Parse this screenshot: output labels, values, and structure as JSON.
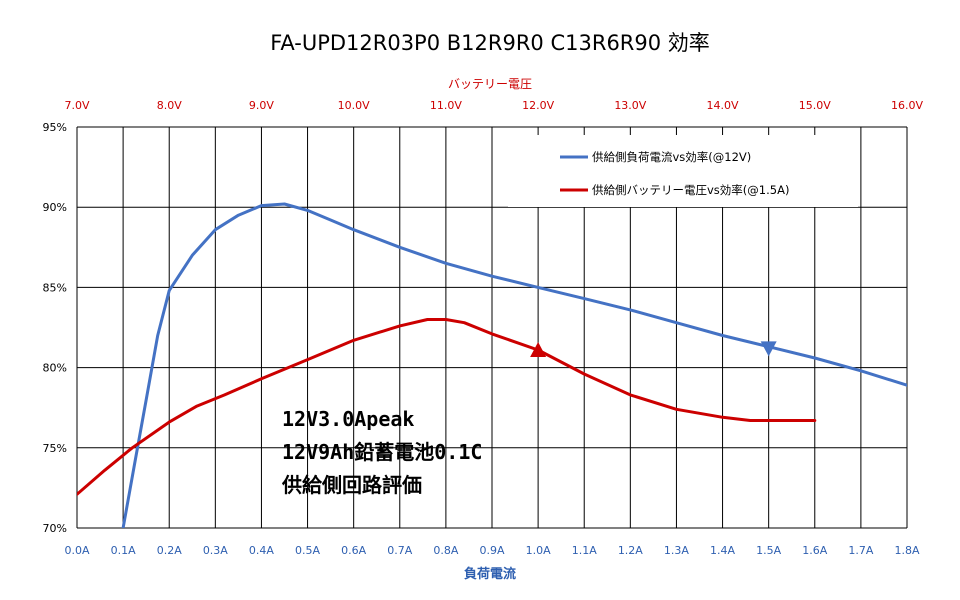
{
  "title": "FA-UPD12R03P0 B12R9R0 C13R6R90 効率",
  "colors": {
    "current_series": "#4472c4",
    "voltage_series": "#cc0000",
    "top_axis": "#cc0000",
    "bottom_axis": "#2e5fb0",
    "grid": "#000000"
  },
  "annotation": [
    "12V3.0Apeak",
    "12V9Ah鉛蓄電池0.1C",
    "供給側回路評価"
  ],
  "chart_data": {
    "type": "line",
    "title": "FA-UPD12R03P0 B12R9R0 C13R6R90 効率",
    "xlabel": "負荷電流",
    "x2label": "バッテリー電圧",
    "ylabel": "",
    "xlim": [
      0,
      1.8
    ],
    "x2lim": [
      7.0,
      16.0
    ],
    "ylim": [
      70,
      95
    ],
    "grid": true,
    "legend_position": "top-right",
    "x_ticks": [
      "0.0A",
      "0.1A",
      "0.2A",
      "0.3A",
      "0.4A",
      "0.5A",
      "0.6A",
      "0.7A",
      "0.8A",
      "0.9A",
      "1.0A",
      "1.1A",
      "1.2A",
      "1.3A",
      "1.4A",
      "1.5A",
      "1.6A",
      "1.7A",
      "1.8A"
    ],
    "x2_ticks": [
      "7.0V",
      "8.0V",
      "9.0V",
      "10.0V",
      "11.0V",
      "12.0V",
      "13.0V",
      "14.0V",
      "15.0V",
      "16.0V"
    ],
    "y_ticks": [
      "70%",
      "75%",
      "80%",
      "85%",
      "90%",
      "95%"
    ],
    "series": [
      {
        "name": "供給側負荷電流vs効率(@12V)",
        "axis": "bottom",
        "marker": "down-triangle",
        "marker_at": [
          1.5,
          81.2
        ],
        "points": [
          [
            0.1,
            70.0
          ],
          [
            0.125,
            74.0
          ],
          [
            0.15,
            78.0
          ],
          [
            0.175,
            82.0
          ],
          [
            0.2,
            84.8
          ],
          [
            0.25,
            87.0
          ],
          [
            0.3,
            88.6
          ],
          [
            0.35,
            89.5
          ],
          [
            0.4,
            90.1
          ],
          [
            0.45,
            90.2
          ],
          [
            0.5,
            89.8
          ],
          [
            0.55,
            89.2
          ],
          [
            0.6,
            88.6
          ],
          [
            0.7,
            87.5
          ],
          [
            0.8,
            86.5
          ],
          [
            0.9,
            85.7
          ],
          [
            1.0,
            85.0
          ],
          [
            1.1,
            84.3
          ],
          [
            1.2,
            83.6
          ],
          [
            1.3,
            82.8
          ],
          [
            1.4,
            82.0
          ],
          [
            1.5,
            81.3
          ],
          [
            1.6,
            80.6
          ],
          [
            1.7,
            79.8
          ],
          [
            1.8,
            78.9
          ]
        ]
      },
      {
        "name": "供給側バッテリー電圧vs効率(@1.5A)",
        "axis": "top",
        "marker": "up-triangle",
        "marker_at": [
          12.0,
          81.1
        ],
        "points": [
          [
            7.0,
            72.1
          ],
          [
            7.3,
            73.6
          ],
          [
            7.6,
            75.0
          ],
          [
            8.0,
            76.6
          ],
          [
            8.3,
            77.6
          ],
          [
            8.6,
            78.3
          ],
          [
            9.0,
            79.3
          ],
          [
            9.5,
            80.5
          ],
          [
            10.0,
            81.7
          ],
          [
            10.5,
            82.6
          ],
          [
            10.8,
            83.0
          ],
          [
            11.0,
            83.0
          ],
          [
            11.2,
            82.8
          ],
          [
            11.5,
            82.1
          ],
          [
            12.0,
            81.1
          ],
          [
            12.5,
            79.6
          ],
          [
            13.0,
            78.3
          ],
          [
            13.5,
            77.4
          ],
          [
            14.0,
            76.9
          ],
          [
            14.3,
            76.7
          ],
          [
            14.6,
            76.7
          ],
          [
            15.0,
            76.7
          ]
        ]
      }
    ]
  }
}
